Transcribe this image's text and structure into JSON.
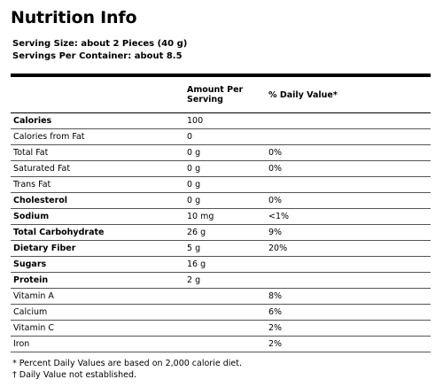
{
  "title": "Nutrition Info",
  "serving_size": "Serving Size: about 2 Pieces (40 g)",
  "servings_per_container": "Servings Per Container: about 8.5",
  "headers": {
    "nutrient": "",
    "amount": "Amount Per Serving",
    "dv": "% Daily Value*"
  },
  "rows": [
    {
      "name": "Calories",
      "amount": "100",
      "dv": "",
      "bold": true
    },
    {
      "name": "Calories from Fat",
      "amount": "0",
      "dv": "",
      "bold": false
    },
    {
      "name": "Total Fat",
      "amount": "0 g",
      "dv": "0%",
      "bold": false
    },
    {
      "name": "Saturated Fat",
      "amount": "0 g",
      "dv": "0%",
      "bold": false
    },
    {
      "name": "Trans Fat",
      "amount": "0 g",
      "dv": "",
      "bold": false
    },
    {
      "name": "Cholesterol",
      "amount": "0 g",
      "dv": "0%",
      "bold": true
    },
    {
      "name": "Sodium",
      "amount": "10 mg",
      "dv": "<1%",
      "bold": true
    },
    {
      "name": "Total Carbohydrate",
      "amount": "26 g",
      "dv": "9%",
      "bold": true
    },
    {
      "name": "Dietary Fiber",
      "amount": "5 g",
      "dv": "20%",
      "bold": true
    },
    {
      "name": "Sugars",
      "amount": "16 g",
      "dv": "",
      "bold": true
    },
    {
      "name": "Protein",
      "amount": "2 g",
      "dv": "",
      "bold": true
    },
    {
      "name": "Vitamin A",
      "amount": "",
      "dv": "8%",
      "bold": false
    },
    {
      "name": "Calcium",
      "amount": "",
      "dv": "6%",
      "bold": false
    },
    {
      "name": "Vitamin C",
      "amount": "",
      "dv": "2%",
      "bold": false
    },
    {
      "name": "Iron",
      "amount": "",
      "dv": "2%",
      "bold": false
    }
  ],
  "footnotes": [
    "* Percent Daily Values are based on 2,000 calorie diet.",
    "† Daily Value not established."
  ]
}
